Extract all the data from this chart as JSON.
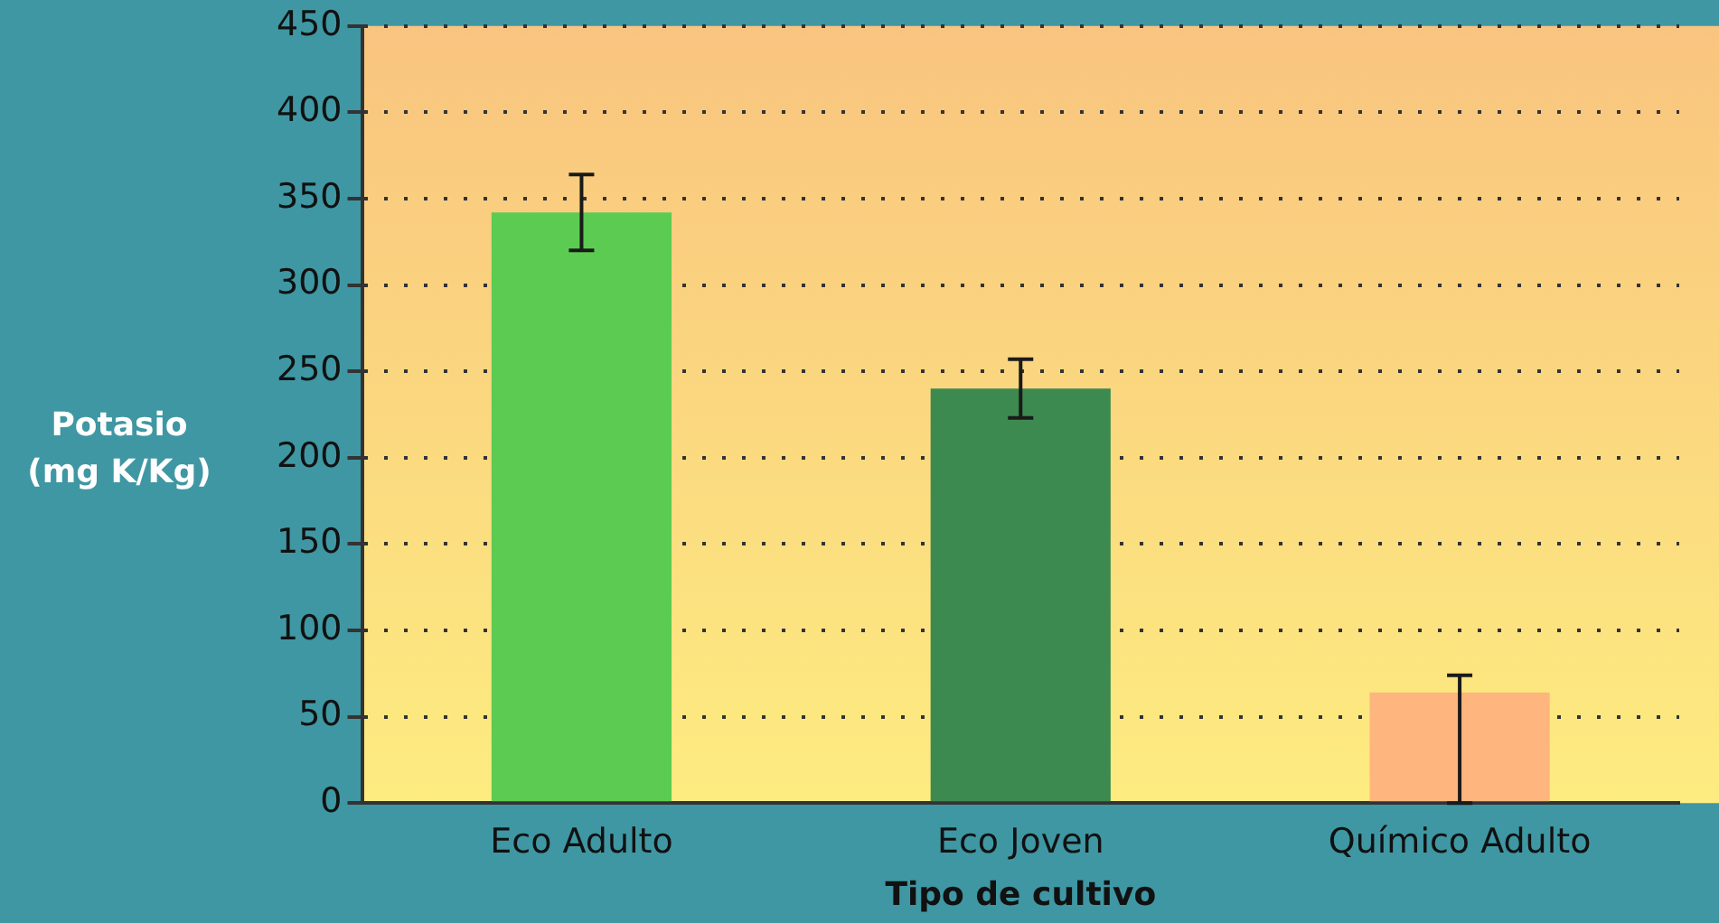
{
  "chart_data": {
    "type": "bar",
    "xlabel": "Tipo de cultivo",
    "ylabel": "Potasio\n(mg K/Kg)",
    "categories": [
      "Eco Adulto",
      "Eco Joven",
      "Químico Adulto"
    ],
    "values": [
      342,
      240,
      64
    ],
    "colors": [
      "#5ccb52",
      "#3d8a50",
      "#ffb57e"
    ],
    "errors": [
      22,
      17,
      [
        0,
        74
      ]
    ],
    "ylim": [
      0,
      450
    ],
    "yticks": [
      0,
      50,
      100,
      150,
      200,
      250,
      300,
      350,
      400,
      450
    ],
    "grid": "y",
    "legend": false
  }
}
